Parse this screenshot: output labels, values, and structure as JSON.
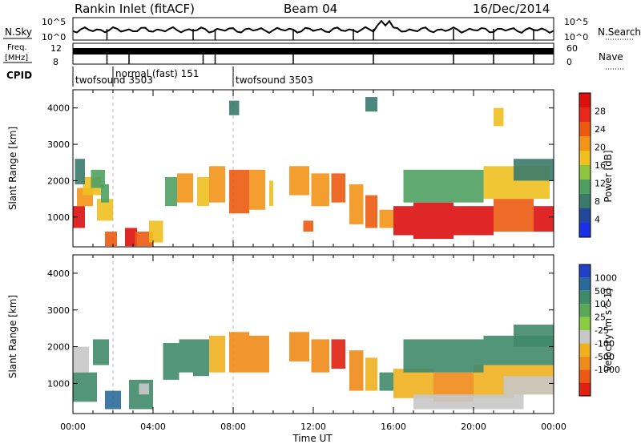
{
  "header": {
    "station": "Rankin Inlet (fitACF)",
    "beam": "Beam 04",
    "date": "16/Dec/2014"
  },
  "noise_panel": {
    "left_label": "N.Sky",
    "left_ticks": [
      "10^5",
      "10^0"
    ],
    "right_ticks": [
      "10^5",
      "10^0"
    ],
    "right_label": "N.Search"
  },
  "freq_panel": {
    "left_label_top": "Freq.",
    "left_label_bottom": "[MHz]",
    "left_ticks": [
      "12",
      "8"
    ],
    "right_ticks": [
      "60",
      "0"
    ],
    "right_label": "Nave",
    "freq_value_mhz": 10.5,
    "nave_value": 30
  },
  "cpid": {
    "label": "CPID",
    "modes": [
      {
        "name": "twofsound 3503",
        "start_h": 0,
        "end_h": 2
      },
      {
        "name": "normal (fast) 151",
        "start_h": 2,
        "end_h": 8
      },
      {
        "name": "twofsound 3503",
        "start_h": 8,
        "end_h": 24
      }
    ]
  },
  "axes": {
    "ylabel": "Slant Range [km]",
    "xlabel": "Time UT",
    "x_ticks": [
      "00:00",
      "04:00",
      "08:00",
      "12:00",
      "16:00",
      "20:00",
      "00:00"
    ],
    "y_ticks": [
      "1000",
      "2000",
      "3000",
      "4000"
    ]
  },
  "colorbars": {
    "power": {
      "label": "Power [dB]",
      "ticks": [
        "4",
        "8",
        "12",
        "16",
        "20",
        "24",
        "28"
      ],
      "colors": [
        "#1b2ee8",
        "#22489e",
        "#3a7a6a",
        "#4fa060",
        "#8ec43e",
        "#f0c020",
        "#f29418",
        "#ec5a10",
        "#e8281a",
        "#dd1010"
      ]
    },
    "velocity": {
      "label": "Velocity [m s^-1]",
      "ticks": [
        "1000",
        "500",
        "100",
        "25",
        "-25",
        "-100",
        "-500",
        "-1000"
      ],
      "colors": [
        "#2040c8",
        "#2a6a9a",
        "#3f8a6a",
        "#58a858",
        "#8ccc40",
        "#c8c8c8",
        "#f0b020",
        "#f08a18",
        "#ea5a14",
        "#e02010"
      ]
    }
  },
  "chart_data": [
    {
      "type": "heatmap",
      "name": "Power",
      "xlim": [
        0,
        24
      ],
      "ylim": [
        180,
        4500
      ],
      "cells": [
        [
          0.0,
          0.6,
          700,
          1300,
          28
        ],
        [
          0.2,
          1.0,
          1300,
          1800,
          20
        ],
        [
          0.5,
          1.4,
          1600,
          2100,
          16
        ],
        [
          0.9,
          1.6,
          1800,
          2300,
          12
        ],
        [
          0.1,
          0.6,
          1900,
          2600,
          8
        ],
        [
          1.2,
          2.0,
          900,
          1500,
          16
        ],
        [
          1.6,
          2.2,
          200,
          600,
          24
        ],
        [
          1.4,
          1.8,
          1400,
          1900,
          12
        ],
        [
          2.6,
          3.2,
          200,
          700,
          28
        ],
        [
          3.1,
          4.0,
          200,
          600,
          24
        ],
        [
          3.8,
          4.5,
          300,
          900,
          16
        ],
        [
          4.6,
          5.2,
          1300,
          2100,
          12
        ],
        [
          5.2,
          6.0,
          1400,
          2200,
          20
        ],
        [
          6.2,
          6.8,
          1300,
          2100,
          16
        ],
        [
          6.8,
          7.6,
          1400,
          2400,
          20
        ],
        [
          7.8,
          8.8,
          1100,
          2300,
          24
        ],
        [
          8.8,
          9.6,
          1200,
          2300,
          20
        ],
        [
          9.8,
          10.0,
          1300,
          2000,
          16
        ],
        [
          10.8,
          11.8,
          1600,
          2400,
          20
        ],
        [
          11.9,
          12.8,
          1300,
          2200,
          20
        ],
        [
          12.9,
          13.6,
          1400,
          2200,
          24
        ],
        [
          13.8,
          14.5,
          800,
          1900,
          20
        ],
        [
          14.6,
          15.2,
          700,
          1600,
          24
        ],
        [
          15.3,
          16.0,
          700,
          1200,
          20
        ],
        [
          16.0,
          17.0,
          500,
          1300,
          28
        ],
        [
          17.0,
          19.0,
          400,
          1400,
          28
        ],
        [
          19.0,
          21.0,
          500,
          1300,
          28
        ],
        [
          21.0,
          23.0,
          600,
          1500,
          24
        ],
        [
          23.0,
          24.0,
          600,
          1300,
          28
        ],
        [
          16.5,
          20.5,
          1400,
          2300,
          12
        ],
        [
          20.5,
          23.8,
          1500,
          2400,
          16
        ],
        [
          22.0,
          24.0,
          2000,
          2600,
          8
        ],
        [
          11.5,
          12.0,
          600,
          900,
          24
        ],
        [
          14.6,
          15.2,
          3900,
          4300,
          8
        ],
        [
          7.8,
          8.3,
          3800,
          4200,
          8
        ],
        [
          21.0,
          21.5,
          3500,
          4000,
          16
        ]
      ]
    },
    {
      "type": "heatmap",
      "name": "Velocity",
      "xlim": [
        0,
        24
      ],
      "ylim": [
        180,
        4500
      ],
      "cells": [
        [
          0.0,
          1.2,
          500,
          1300,
          100
        ],
        [
          0.0,
          0.8,
          1300,
          2000,
          25
        ],
        [
          1.0,
          1.8,
          1500,
          2200,
          100
        ],
        [
          1.6,
          2.4,
          300,
          800,
          500
        ],
        [
          2.8,
          4.0,
          300,
          1100,
          100
        ],
        [
          3.3,
          3.8,
          700,
          1000,
          25
        ],
        [
          4.5,
          5.3,
          1100,
          2100,
          100
        ],
        [
          5.3,
          6.0,
          1300,
          2200,
          100
        ],
        [
          6.0,
          6.8,
          1200,
          2200,
          100
        ],
        [
          6.8,
          7.6,
          1300,
          2300,
          -100
        ],
        [
          7.8,
          8.8,
          1300,
          2400,
          -500
        ],
        [
          8.8,
          9.8,
          1300,
          2300,
          -500
        ],
        [
          10.8,
          11.8,
          1600,
          2400,
          -500
        ],
        [
          11.9,
          12.8,
          1300,
          2200,
          -500
        ],
        [
          12.9,
          13.6,
          1400,
          2200,
          -1000
        ],
        [
          13.8,
          14.5,
          800,
          1900,
          -500
        ],
        [
          14.6,
          15.2,
          800,
          1700,
          -100
        ],
        [
          15.3,
          16.0,
          800,
          1300,
          100
        ],
        [
          16.0,
          18.0,
          600,
          1400,
          -100
        ],
        [
          18.0,
          20.0,
          500,
          1300,
          -500
        ],
        [
          20.0,
          22.0,
          600,
          1500,
          -100
        ],
        [
          22.0,
          24.0,
          700,
          1500,
          -100
        ],
        [
          16.5,
          20.5,
          1300,
          2200,
          100
        ],
        [
          20.5,
          24.0,
          1500,
          2300,
          100
        ],
        [
          17.0,
          22.5,
          300,
          700,
          -25
        ],
        [
          21.5,
          24.0,
          700,
          1200,
          25
        ],
        [
          22.0,
          24.0,
          2000,
          2600,
          100
        ]
      ]
    }
  ]
}
